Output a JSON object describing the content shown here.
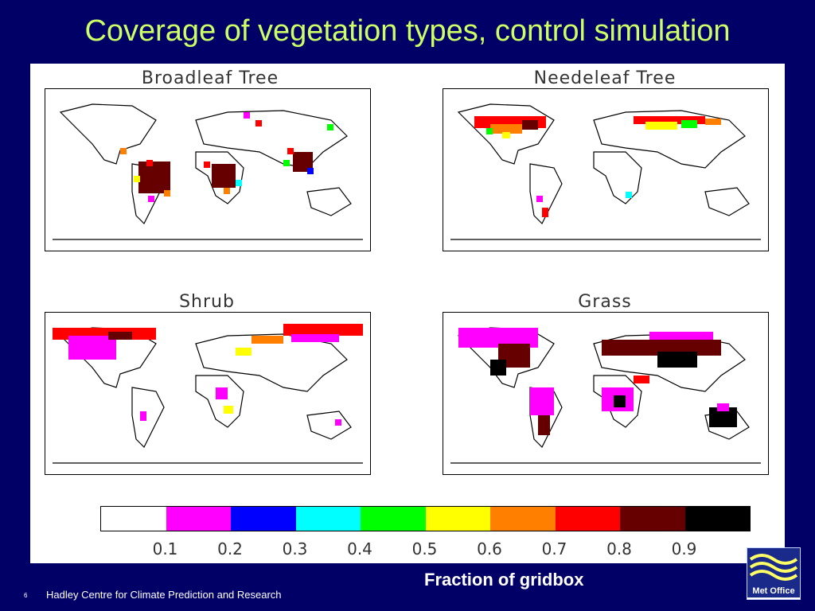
{
  "slide": {
    "title": "Coverage of vegetation types, control simulation",
    "footer": "Hadley Centre for Climate Prediction and Research",
    "page_number": "6",
    "logo_text": "Met Office"
  },
  "maps": [
    {
      "title": "Broadleaf Tree"
    },
    {
      "title": "Needeleaf Tree"
    },
    {
      "title": "Shrub"
    },
    {
      "title": "Grass"
    }
  ],
  "colorbar": {
    "colors": [
      "#ffffff",
      "#ff00ff",
      "#0000ff",
      "#00ffff",
      "#00ff00",
      "#ffff00",
      "#ff8000",
      "#ff0000",
      "#660000",
      "#000000"
    ],
    "tick_labels": [
      "0.1",
      "0.2",
      "0.3",
      "0.4",
      "0.5",
      "0.6",
      "0.7",
      "0.8",
      "0.9"
    ],
    "caption": "Fraction of gridbox"
  },
  "colors": {
    "background": "#000066",
    "title_color": "#ccff66"
  }
}
